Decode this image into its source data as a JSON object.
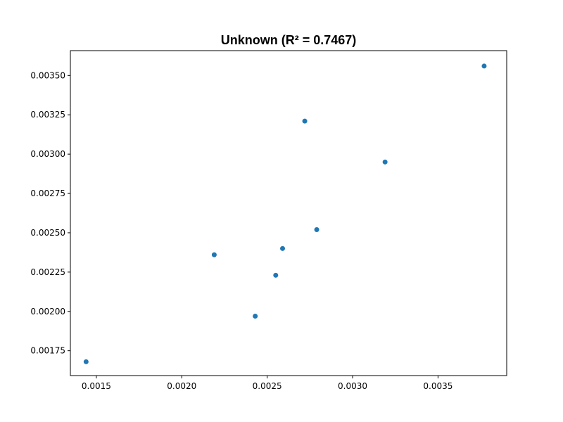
{
  "chart_data": {
    "type": "scatter",
    "title": "Unknown (R² = 0.7467)",
    "xlabel": "",
    "ylabel": "",
    "xlim": [
      0.001348,
      0.003902
    ],
    "ylim": [
      0.001592,
      0.003658
    ],
    "grid": false,
    "color": "#1f77b4",
    "x_ticks": [
      {
        "value": 0.0015,
        "label": "0.0015"
      },
      {
        "value": 0.002,
        "label": "0.0020"
      },
      {
        "value": 0.0025,
        "label": "0.0025"
      },
      {
        "value": 0.003,
        "label": "0.0030"
      },
      {
        "value": 0.0035,
        "label": "0.0035"
      }
    ],
    "y_ticks": [
      {
        "value": 0.00175,
        "label": "0.00175"
      },
      {
        "value": 0.002,
        "label": "0.00200"
      },
      {
        "value": 0.00225,
        "label": "0.00225"
      },
      {
        "value": 0.0025,
        "label": "0.00250"
      },
      {
        "value": 0.00275,
        "label": "0.00275"
      },
      {
        "value": 0.003,
        "label": "0.00300"
      },
      {
        "value": 0.00325,
        "label": "0.00325"
      },
      {
        "value": 0.0035,
        "label": "0.00350"
      }
    ],
    "points": [
      {
        "x": 0.00144,
        "y": 0.00168
      },
      {
        "x": 0.00219,
        "y": 0.00236
      },
      {
        "x": 0.00243,
        "y": 0.00197
      },
      {
        "x": 0.00255,
        "y": 0.00223
      },
      {
        "x": 0.00259,
        "y": 0.0024
      },
      {
        "x": 0.00272,
        "y": 0.00321
      },
      {
        "x": 0.00279,
        "y": 0.00252
      },
      {
        "x": 0.00319,
        "y": 0.00295
      },
      {
        "x": 0.00377,
        "y": 0.00356
      }
    ]
  }
}
